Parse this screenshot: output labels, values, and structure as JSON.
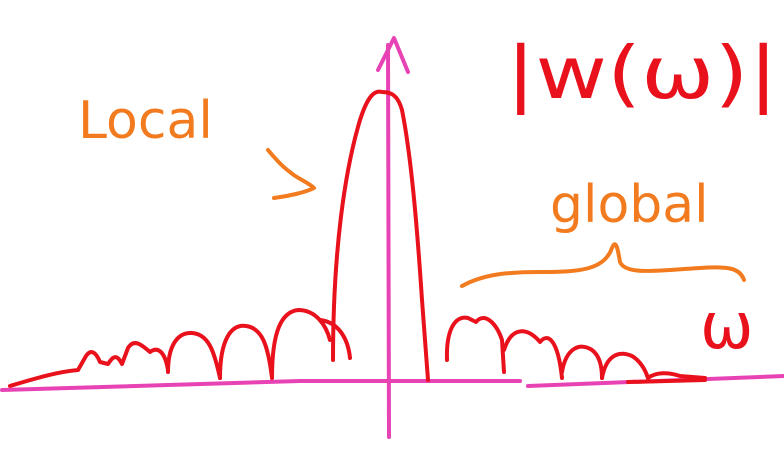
{
  "annotations": {
    "magnitude_label": "|w(ω)|",
    "local_label": "Local",
    "global_label": "global",
    "axis_label": "ω"
  }
}
